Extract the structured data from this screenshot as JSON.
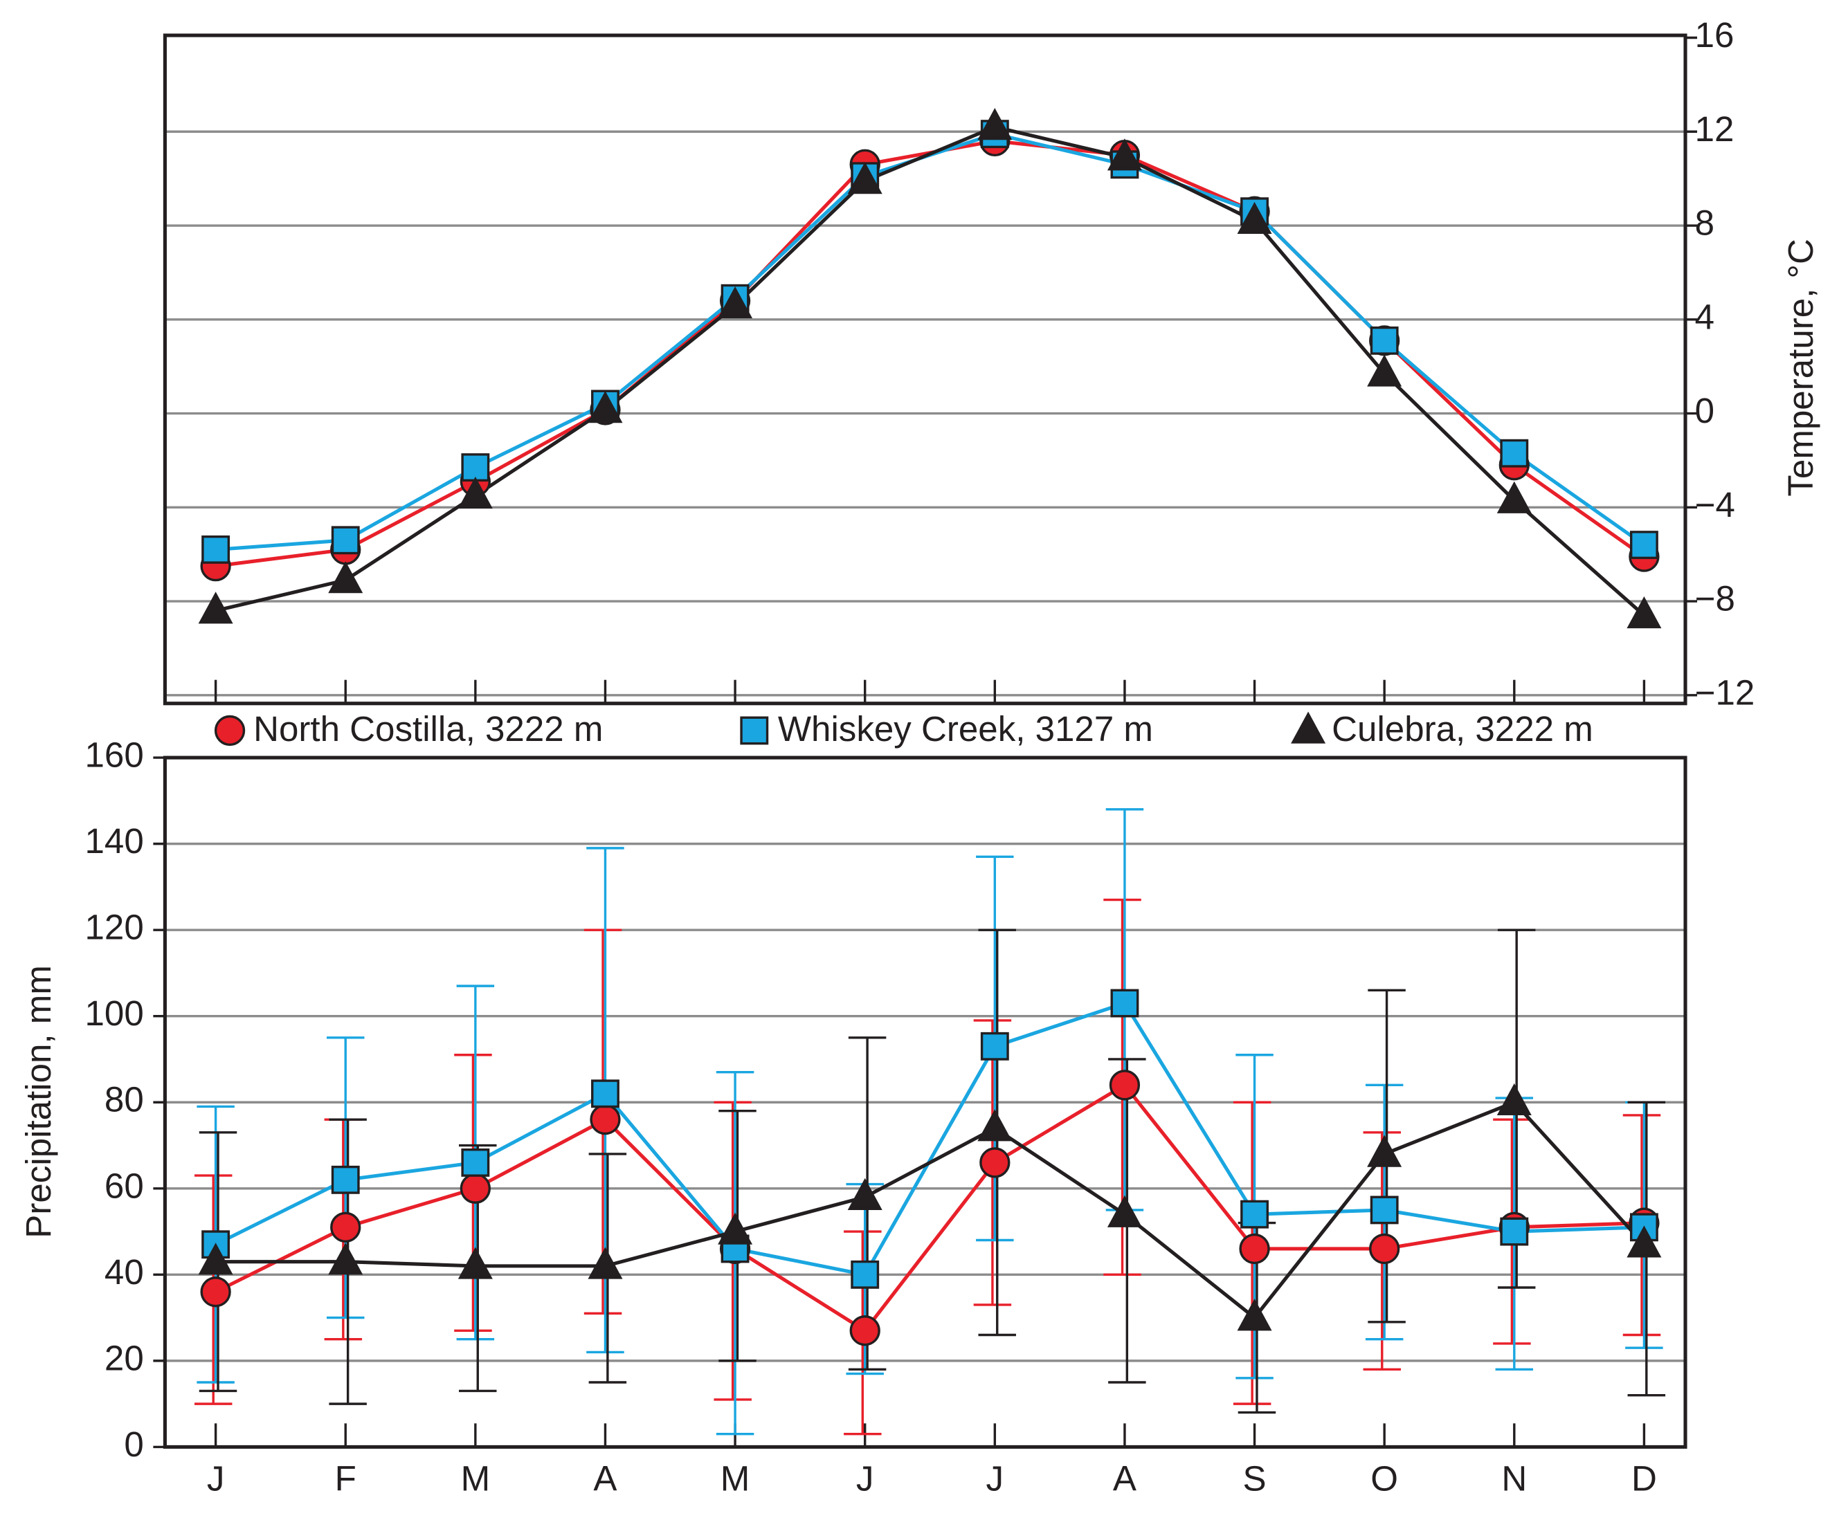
{
  "chart_data": [
    {
      "type": "line",
      "ylabel": "Temperature, °C",
      "ylim": [
        -12,
        16
      ],
      "yticks": [
        {
          "value": -12,
          "label": "−12"
        },
        {
          "value": -8,
          "label": "−8"
        },
        {
          "value": -4,
          "label": "−4"
        },
        0,
        4,
        8,
        12,
        16
      ],
      "grid": true,
      "series": [
        {
          "name": "North Costilla, 3222 m",
          "color": "#e8202a",
          "marker": "circle",
          "values": [
            -6.5,
            -5.8,
            -2.9,
            0.15,
            4.8,
            10.6,
            11.6,
            11.0,
            8.6,
            3.1,
            -2.2,
            -6.1
          ]
        },
        {
          "name": "Whiskey Creek, 3127 m",
          "color": "#1aa6e0",
          "marker": "square",
          "values": [
            -5.8,
            -5.4,
            -2.3,
            0.4,
            4.9,
            10.1,
            11.9,
            10.6,
            8.6,
            3.1,
            -1.7,
            -5.6
          ]
        },
        {
          "name": "Culebra, 3222 m",
          "color": "#231f20",
          "marker": "triangle",
          "values": [
            -8.4,
            -7.1,
            -3.5,
            0.15,
            4.6,
            9.9,
            12.2,
            10.9,
            8.2,
            1.7,
            -3.7,
            -8.6
          ]
        }
      ]
    },
    {
      "type": "line",
      "ylabel": "Precipitation, mm",
      "ylim": [
        0,
        160
      ],
      "yticks": [
        0,
        20,
        40,
        60,
        80,
        100,
        120,
        140,
        160
      ],
      "grid": true,
      "categories": [
        "J",
        "F",
        "M",
        "A",
        "M",
        "J",
        "J",
        "A",
        "S",
        "O",
        "N",
        "D"
      ],
      "series": [
        {
          "color": "#e8202a",
          "marker": "circle",
          "values": [
            36,
            51,
            60,
            76,
            46,
            27,
            66,
            84,
            46,
            46,
            51,
            52
          ],
          "lower": [
            10,
            25,
            27,
            31,
            11,
            3,
            33,
            40,
            10,
            18,
            24,
            26
          ],
          "upper": [
            63,
            76,
            91,
            120,
            80,
            50,
            99,
            127,
            80,
            73,
            76,
            77
          ]
        },
        {
          "color": "#1aa6e0",
          "marker": "square",
          "values": [
            47,
            62,
            66,
            82,
            46,
            40,
            93,
            103,
            54,
            55,
            50,
            51
          ],
          "lower": [
            15,
            30,
            25,
            22,
            3,
            17,
            48,
            55,
            16,
            25,
            18,
            23
          ],
          "upper": [
            79,
            95,
            107,
            139,
            87,
            61,
            137,
            148,
            91,
            84,
            81,
            80
          ]
        },
        {
          "color": "#231f20",
          "marker": "triangle",
          "values": [
            43,
            43,
            42,
            42,
            50,
            58,
            74,
            54,
            30,
            68,
            80,
            47
          ],
          "lower": [
            13,
            10,
            13,
            15,
            20,
            18,
            26,
            15,
            8,
            29,
            37,
            12
          ],
          "upper": [
            73,
            76,
            70,
            68,
            78,
            95,
            120,
            90,
            52,
            106,
            120,
            80
          ]
        }
      ]
    }
  ]
}
